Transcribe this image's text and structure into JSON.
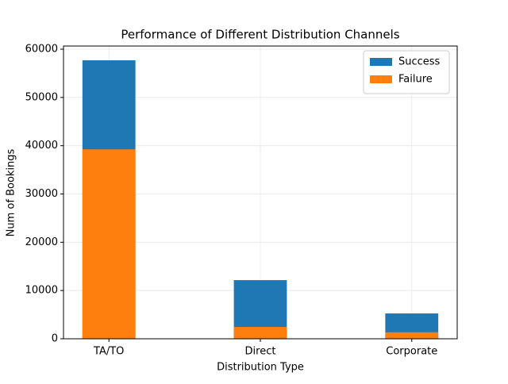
{
  "chart_data": {
    "type": "bar",
    "title": "Performance of Different Distribution Channels",
    "x_label": "Distribution Type",
    "y_label": "Num of Bookings",
    "categories": [
      "TA/TO",
      "Direct",
      "Corporate"
    ],
    "series": [
      {
        "name": "Success",
        "color": "#1f77b4",
        "values": [
          57700,
          12150,
          5250
        ]
      },
      {
        "name": "Failure",
        "color": "#ff7f0e",
        "values": [
          39250,
          2450,
          1350
        ]
      }
    ],
    "ylim": [
      0,
      60000
    ],
    "yticks": [
      0,
      10000,
      20000,
      30000,
      40000,
      50000,
      60000
    ],
    "grid": true,
    "legend": "upper right"
  }
}
